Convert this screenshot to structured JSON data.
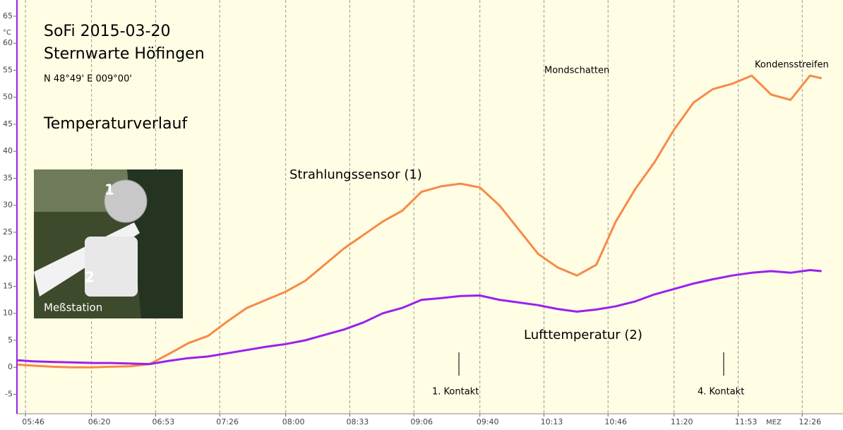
{
  "chart_data": {
    "type": "line",
    "title": "SoFi 2015-03-20",
    "subtitle": "Sternwarte Höfingen",
    "coordinates": "N 48°49'  E 009°00'",
    "caption": "Temperaturverlauf",
    "y_unit": "°C",
    "x_unit": "MEZ",
    "annotations": [
      "Mondschatten",
      "Kondensstreifen",
      "1. Kontakt",
      "4. Kontakt"
    ],
    "inset": {
      "labels": [
        "1",
        "2",
        "Meßstation"
      ]
    },
    "xlim": [
      341.6,
      767
    ],
    "ylim": [
      -8.6,
      68
    ],
    "xticks": [
      {
        "value": 346,
        "label": "05:46"
      },
      {
        "value": 380,
        "label": "06:20"
      },
      {
        "value": 413,
        "label": "06:53"
      },
      {
        "value": 446,
        "label": "07:26"
      },
      {
        "value": 480,
        "label": "08:00"
      },
      {
        "value": 513,
        "label": "08:33"
      },
      {
        "value": 546,
        "label": "09:06"
      },
      {
        "value": 580,
        "label": "09:40"
      },
      {
        "value": 613,
        "label": "10:13"
      },
      {
        "value": 646,
        "label": "10:46"
      },
      {
        "value": 680,
        "label": "11:20"
      },
      {
        "value": 713,
        "label": "11:53"
      },
      {
        "value": 746,
        "label": "12:26"
      }
    ],
    "yticks": [
      -5,
      0,
      5,
      10,
      15,
      20,
      25,
      30,
      35,
      40,
      45,
      50,
      55,
      60,
      65
    ],
    "x": [
      342,
      350,
      360,
      370,
      380,
      390,
      400,
      410,
      420,
      430,
      440,
      450,
      460,
      470,
      480,
      490,
      500,
      510,
      520,
      530,
      540,
      550,
      560,
      570,
      580,
      590,
      600,
      610,
      620,
      630,
      640,
      650,
      660,
      670,
      680,
      690,
      700,
      710,
      720,
      730,
      740,
      750,
      756
    ],
    "series": [
      {
        "name": "Strahlungssensor (1)",
        "color": "#f7894a",
        "values": [
          0.5,
          0.3,
          0.1,
          0,
          0,
          0.1,
          0.2,
          0.6,
          2.5,
          4.5,
          5.8,
          8.5,
          11,
          12.5,
          14,
          16,
          19,
          22,
          24.5,
          27,
          29,
          32.5,
          33.5,
          34,
          33.3,
          30,
          25.5,
          21,
          18.5,
          17,
          19,
          27,
          33,
          38,
          44,
          49,
          51.5,
          52.5,
          54,
          50.5,
          49.5,
          54,
          53.5
        ]
      },
      {
        "name": "Lufttemperatur (2)",
        "color": "#9b20f0",
        "values": [
          1.3,
          1.1,
          1,
          0.9,
          0.8,
          0.8,
          0.7,
          0.6,
          1.2,
          1.7,
          2,
          2.6,
          3.2,
          3.8,
          4.3,
          5,
          6,
          7,
          8.3,
          10,
          11,
          12.5,
          12.8,
          13.2,
          13.3,
          12.5,
          12,
          11.5,
          10.8,
          10.3,
          10.7,
          11.3,
          12.2,
          13.5,
          14.5,
          15.5,
          16.3,
          17,
          17.5,
          17.8,
          17.5,
          18,
          17.8
        ]
      }
    ]
  }
}
